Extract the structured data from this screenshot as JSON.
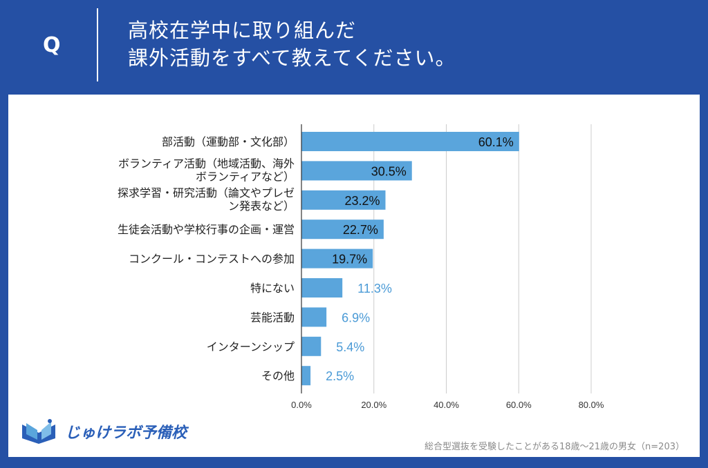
{
  "header": {
    "q_label": "Q",
    "title_line1": "高校在学中に取り組んだ",
    "title_line2": "課外活動をすべて教えてください。"
  },
  "footer": {
    "logo_text": "じゅけラボ予備校",
    "note": "総合型選抜を受験したことがある18歳～21歳の男女（n=203）"
  },
  "colors": {
    "background": "#2550a4",
    "bar": "#5aa5dc",
    "outside_label": "#4a9ad6"
  },
  "chart_data": {
    "type": "bar",
    "orientation": "horizontal",
    "categories": [
      [
        "部活動（運動部・文化部）"
      ],
      [
        "ボランティア活動（地域活動、海外",
        "ボランティアなど）"
      ],
      [
        "探求学習・研究活動（論文やプレゼ",
        "ン発表など）"
      ],
      [
        "生徒会活動や学校行事の企画・運営"
      ],
      [
        "コンクール・コンテストへの参加"
      ],
      [
        "特にない"
      ],
      [
        "芸能活動"
      ],
      [
        "インターンシップ"
      ],
      [
        "その他"
      ]
    ],
    "values": [
      60.1,
      30.5,
      23.2,
      22.7,
      19.7,
      11.3,
      6.9,
      5.4,
      2.5
    ],
    "data_labels": [
      "60.1%",
      "30.5%",
      "23.2%",
      "22.7%",
      "19.7%",
      "11.3%",
      "6.9%",
      "5.4%",
      "2.5%"
    ],
    "xlim": [
      0,
      80
    ],
    "ticks": [
      "0.0%",
      "20.0%",
      "40.0%",
      "60.0%",
      "80.0%"
    ],
    "tick_values": [
      0,
      20,
      40,
      60,
      80
    ],
    "grid": true
  }
}
